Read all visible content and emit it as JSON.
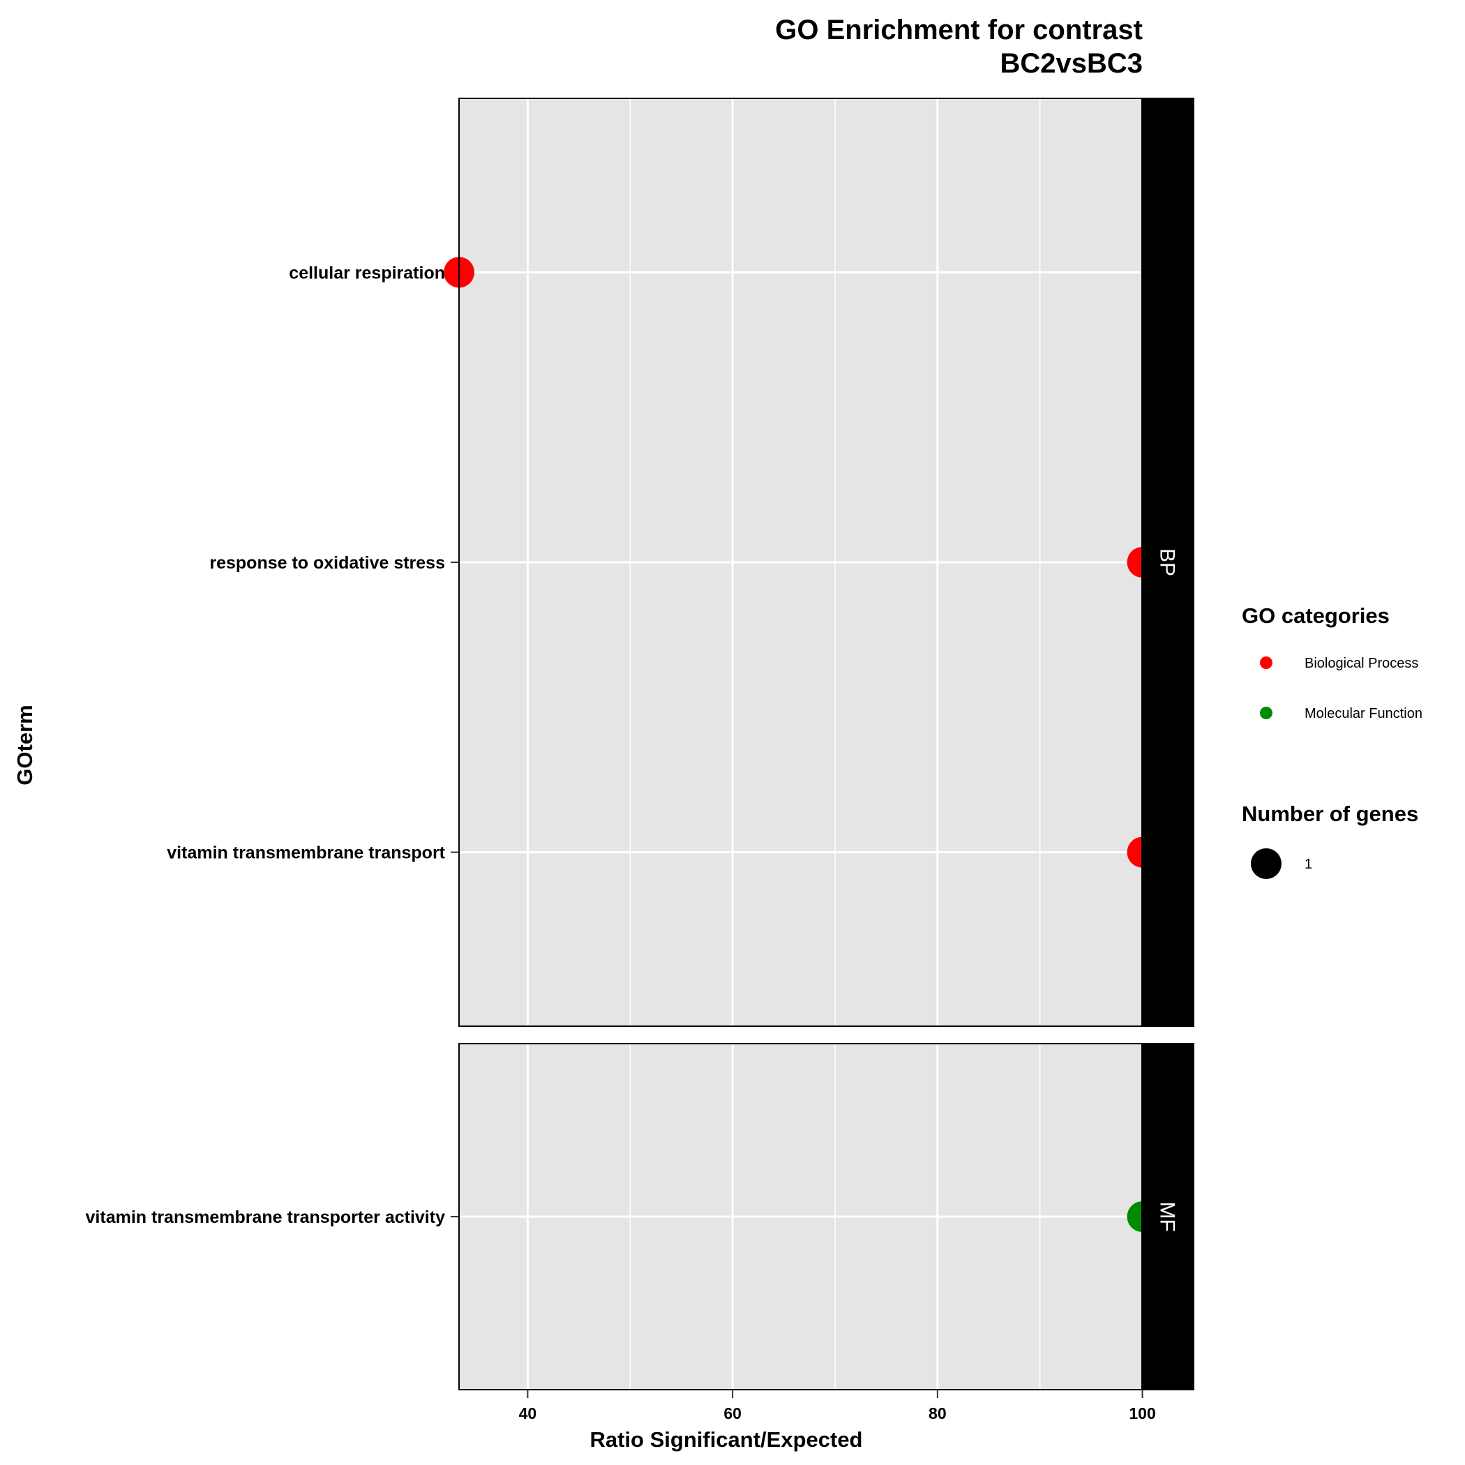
{
  "chart_data": {
    "type": "scatter",
    "title_line1": "GO Enrichment for contrast",
    "title_line2": "BC2vsBC3",
    "xlabel": "Ratio Significant/Expected",
    "ylabel": "GOterm",
    "xlim": [
      33.3,
      105
    ],
    "xticks": [
      40,
      60,
      80,
      100
    ],
    "grid": true,
    "facets": [
      {
        "label": "BP",
        "category": "Biological Process",
        "terms": [
          "cellular respiration",
          "response to oxidative stress",
          "vitamin transmembrane transport"
        ],
        "points": [
          {
            "term": "cellular respiration",
            "x": 33.3,
            "genes": 1
          },
          {
            "term": "response to oxidative stress",
            "x": 100,
            "genes": 1
          },
          {
            "term": "vitamin transmembrane transport",
            "x": 100,
            "genes": 1
          }
        ]
      },
      {
        "label": "MF",
        "category": "Molecular Function",
        "terms": [
          "vitamin transmembrane transporter activity"
        ],
        "points": [
          {
            "term": "vitamin transmembrane transporter activity",
            "x": 100,
            "genes": 1
          }
        ]
      }
    ],
    "legend": {
      "placement": "right",
      "color_title": "GO categories",
      "color_items": [
        {
          "label": "Biological Process",
          "color": "#ff0000"
        },
        {
          "label": "Molecular Function",
          "color": "#008b00"
        }
      ],
      "size_title": "Number of genes",
      "size_items": [
        {
          "label": "1",
          "value": 1
        }
      ]
    },
    "colors": {
      "panel_bg": "#e5e5e5",
      "grid": "#ffffff",
      "strip_bg": "#000000",
      "strip_text": "#ffffff"
    }
  }
}
